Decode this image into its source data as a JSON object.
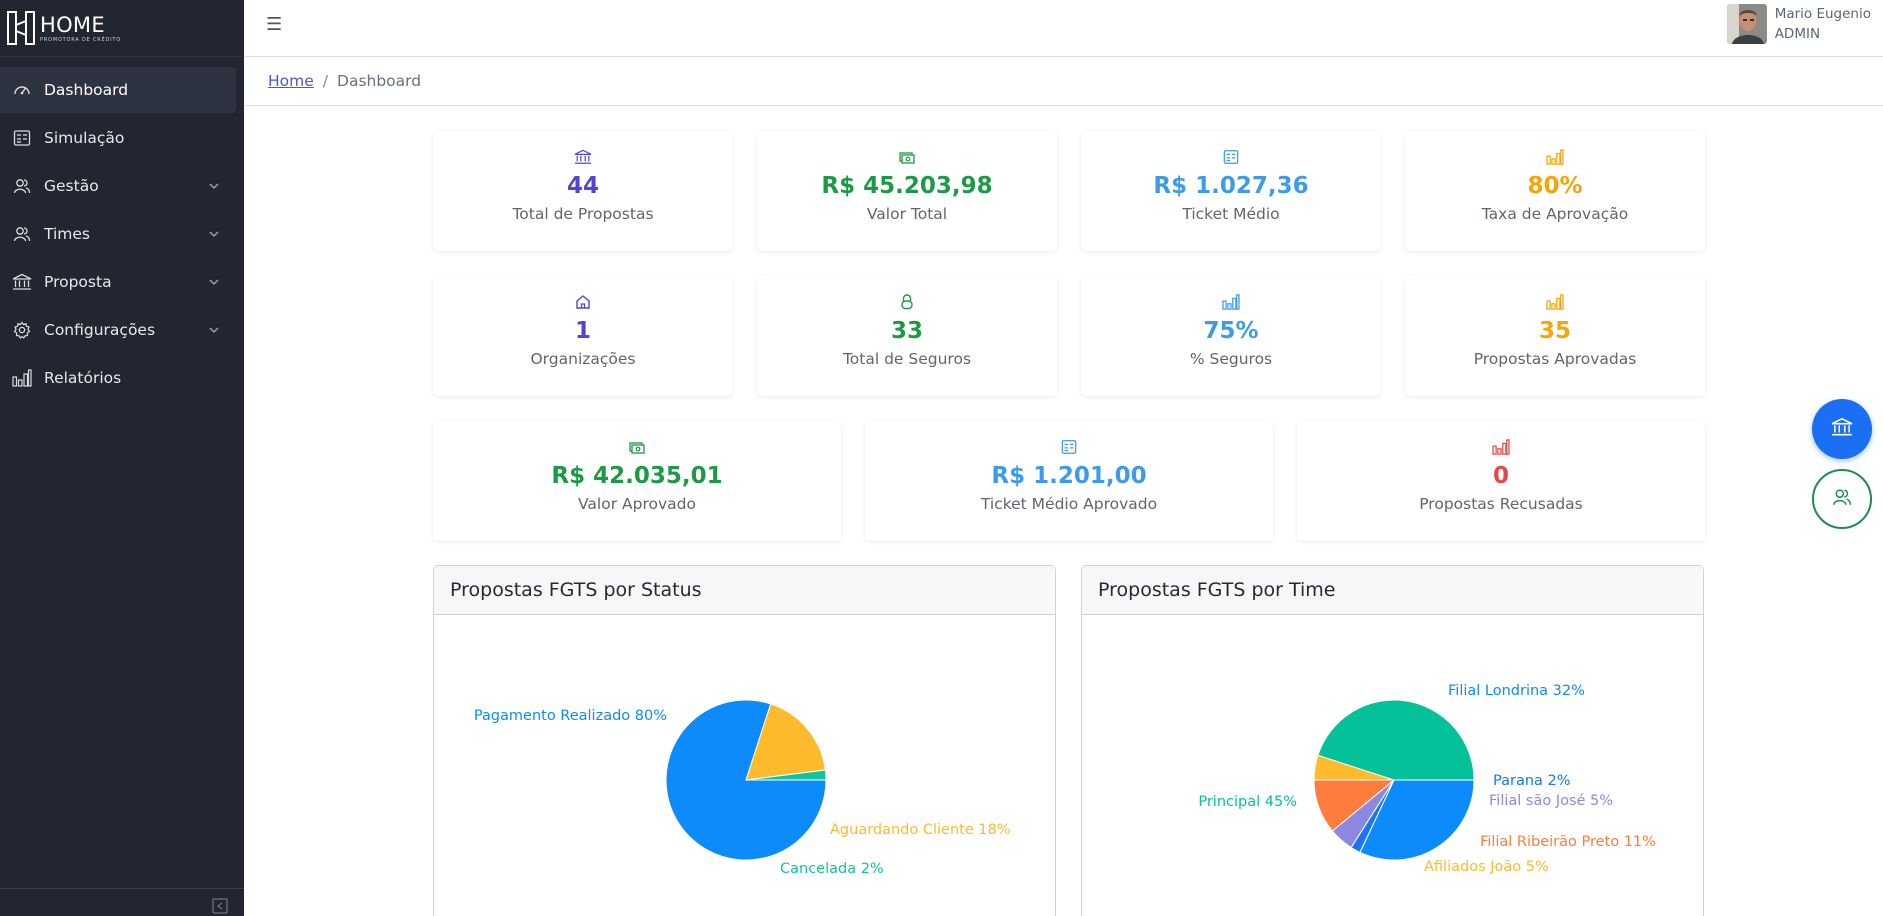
{
  "brand": {
    "title": "HOME",
    "subtitle": "PROMOTORA DE CRÉDITO"
  },
  "sidebar": {
    "items": [
      {
        "label": "Dashboard",
        "icon": "speedometer-icon",
        "active": true,
        "expandable": false
      },
      {
        "label": "Simulação",
        "icon": "calculator-icon",
        "active": false,
        "expandable": false
      },
      {
        "label": "Gestão",
        "icon": "users-icon",
        "active": false,
        "expandable": true
      },
      {
        "label": "Times",
        "icon": "users-icon",
        "active": false,
        "expandable": true
      },
      {
        "label": "Proposta",
        "icon": "bank-icon",
        "active": false,
        "expandable": true
      },
      {
        "label": "Configurações",
        "icon": "gear-icon",
        "active": false,
        "expandable": true
      },
      {
        "label": "Relatórios",
        "icon": "bar-chart-icon",
        "active": false,
        "expandable": false
      }
    ]
  },
  "header": {
    "menu_icon": "☰",
    "user_name": "Mario Eugenio",
    "user_role": "ADMIN"
  },
  "breadcrumb": {
    "home": "Home",
    "separator": "/",
    "current": "Dashboard"
  },
  "stats": {
    "total_propostas": {
      "value": "44",
      "label": "Total de Propostas",
      "icon": "bank-icon",
      "color": "#5046d2"
    },
    "valor_total": {
      "value": "R$ 45.203,98",
      "label": "Valor Total",
      "icon": "cash-icon",
      "color": "#1c9a45"
    },
    "ticket_medio": {
      "value": "R$ 1.027,36",
      "label": "Ticket Médio",
      "icon": "calculator-icon",
      "color": "#3d9be9"
    },
    "taxa_aprovacao": {
      "value": "80%",
      "label": "Taxa de Aprovação",
      "icon": "bar-chart-icon",
      "color": "#f5a50b"
    },
    "organizacoes": {
      "value": "1",
      "label": "Organizações",
      "icon": "home-icon",
      "color": "#5046d2"
    },
    "total_seguros": {
      "value": "33",
      "label": "Total de Seguros",
      "icon": "lock-icon",
      "color": "#1c9a45"
    },
    "pct_seguros": {
      "value": "75%",
      "label": "% Seguros",
      "icon": "bar-chart-icon",
      "color": "#3d9be9"
    },
    "propostas_aprovadas": {
      "value": "35",
      "label": "Propostas Aprovadas",
      "icon": "bar-chart-icon",
      "color": "#f5a50b"
    },
    "valor_aprovado": {
      "value": "R$ 42.035,01",
      "label": "Valor Aprovado",
      "icon": "cash-icon",
      "color": "#1c9a45"
    },
    "ticket_medio_aprovado": {
      "value": "R$ 1.201,00",
      "label": "Ticket Médio Aprovado",
      "icon": "calculator-icon",
      "color": "#3d9be9"
    },
    "propostas_recusadas": {
      "value": "0",
      "label": "Propostas Recusadas",
      "icon": "bar-chart-icon",
      "color": "#e14a4a"
    }
  },
  "fabs": {
    "primary_icon": "bank-icon",
    "secondary_icon": "users-icon"
  },
  "panels": {
    "status": {
      "title": "Propostas FGTS por Status"
    },
    "time": {
      "title": "Propostas FGTS por Time"
    }
  },
  "chart_data": [
    {
      "type": "pie",
      "title": "Propostas FGTS por Status",
      "slices": [
        {
          "label": "Pagamento Realizado 80%",
          "value": 80,
          "color": "#0d8bfa"
        },
        {
          "label": "Aguardando Cliente 18%",
          "value": 18,
          "color": "#fdba2c"
        },
        {
          "label": "Cancelada 2%",
          "value": 2,
          "color": "#12c49c"
        }
      ]
    },
    {
      "type": "pie",
      "title": "Propostas FGTS por Time",
      "slices": [
        {
          "label": "Filial Londrina 32%",
          "value": 32,
          "color": "#0d8bfa"
        },
        {
          "label": "Parana 2%",
          "value": 2,
          "color": "#1976f0"
        },
        {
          "label": "Filial são José 5%",
          "value": 5,
          "color": "#8c88e2"
        },
        {
          "label": "Filial Ribeirão Preto 11%",
          "value": 11,
          "color": "#ff7d3c"
        },
        {
          "label": "Afiliados João 5%",
          "value": 5,
          "color": "#fdba2c"
        },
        {
          "label": "Principal 45%",
          "value": 45,
          "color": "#05c19a"
        }
      ]
    }
  ]
}
